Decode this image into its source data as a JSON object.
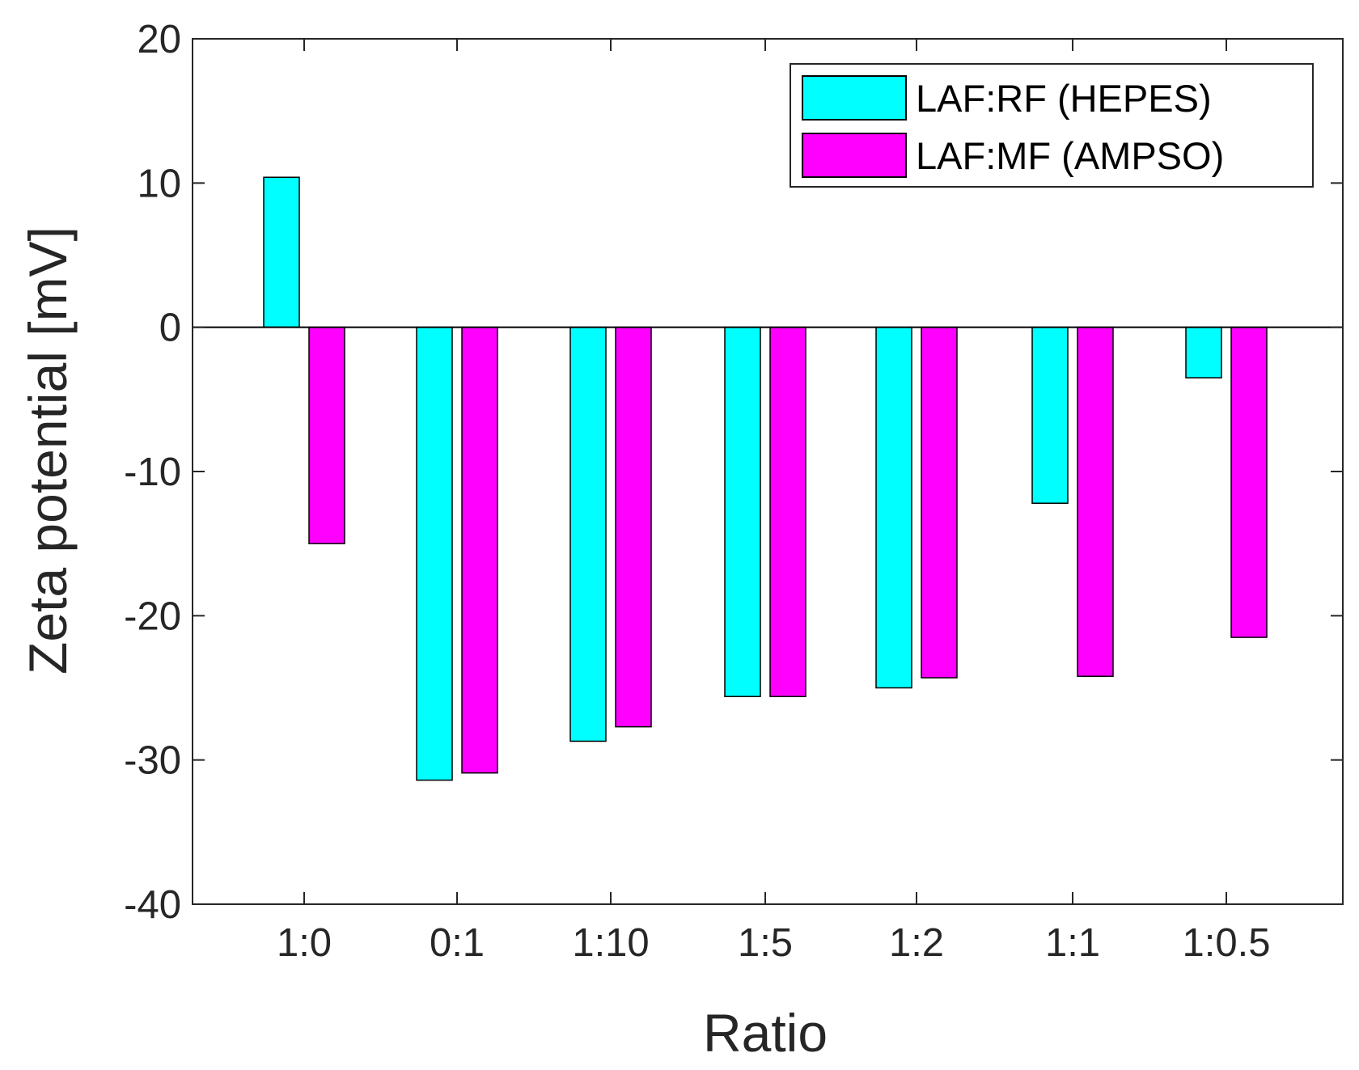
{
  "chart_data": {
    "type": "bar",
    "xlabel": "Ratio",
    "ylabel": "Zeta potential [mV]",
    "categories": [
      "1:0",
      "0:1",
      "1:10",
      "1:5",
      "1:2",
      "1:1",
      "1:0.5"
    ],
    "ylim": [
      -40,
      20
    ],
    "yticks": [
      20,
      10,
      0,
      -10,
      -20,
      -30,
      -40
    ],
    "grid": false,
    "legend_position": "top-right",
    "series": [
      {
        "name": "LAF:RF (HEPES)",
        "color": "#00ffff",
        "values": [
          10.4,
          -31.4,
          -28.7,
          -25.6,
          -25.0,
          -12.2,
          -3.5
        ]
      },
      {
        "name": "LAF:MF (AMPSO)",
        "color": "#ff00ff",
        "values": [
          -15.0,
          -30.9,
          -27.7,
          -25.6,
          -24.3,
          -24.2,
          -21.5
        ]
      }
    ]
  }
}
